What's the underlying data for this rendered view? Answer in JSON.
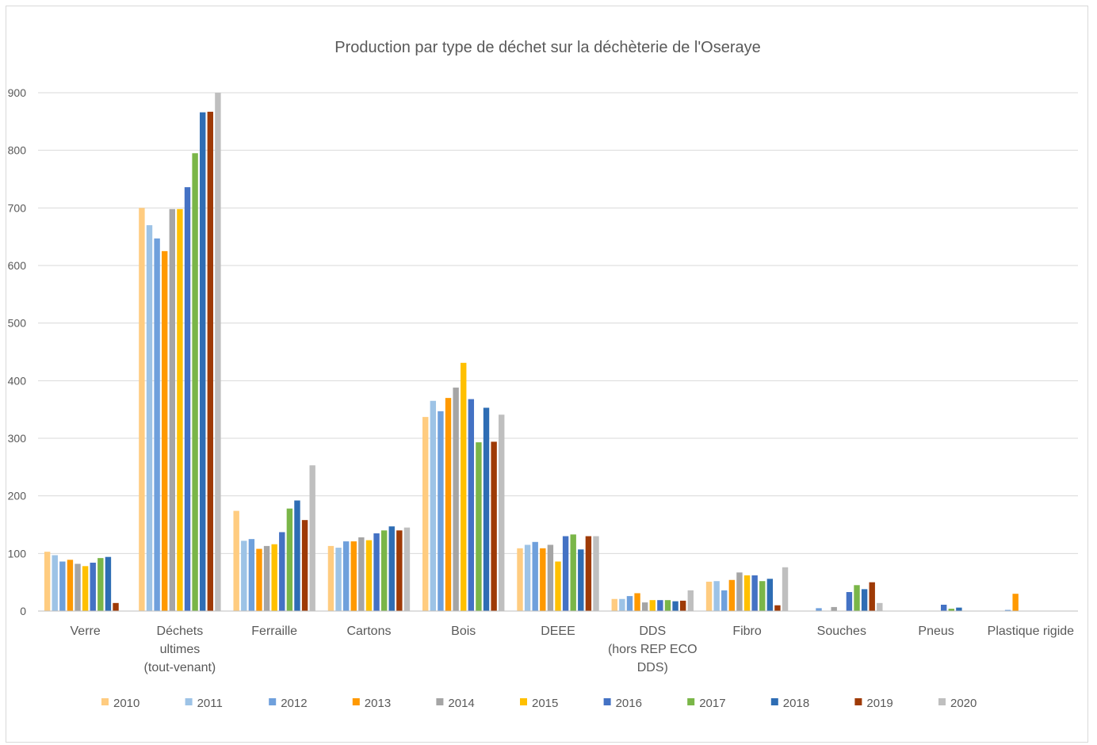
{
  "chart_data": {
    "type": "bar",
    "title": "Production par type de déchet sur la  déchèterie de l'Oseraye",
    "xlabel": "",
    "ylabel": "",
    "ylim": [
      0,
      900
    ],
    "yticks": [
      0,
      100,
      200,
      300,
      400,
      500,
      600,
      700,
      800,
      900
    ],
    "grid": true,
    "legend_position": "bottom",
    "categories": [
      [
        "Verre"
      ],
      [
        "Déchets",
        "ultimes",
        "(tout-venant)"
      ],
      [
        "Ferraille"
      ],
      [
        "Cartons"
      ],
      [
        "Bois"
      ],
      [
        "DEEE"
      ],
      [
        "DDS",
        "(hors REP ECO",
        "DDS)"
      ],
      [
        "Fibro"
      ],
      [
        "Souches"
      ],
      [
        "Pneus"
      ],
      [
        "Plastique rigide"
      ]
    ],
    "series": [
      {
        "name": "2010",
        "color": "#FFCC80",
        "values": [
          103,
          700,
          174,
          113,
          337,
          109,
          21,
          51,
          0,
          0,
          0
        ]
      },
      {
        "name": "2011",
        "color": "#9DC3E6",
        "values": [
          97,
          670,
          122,
          110,
          365,
          115,
          21,
          52,
          0,
          0,
          0
        ]
      },
      {
        "name": "2012",
        "color": "#6FA0DC",
        "values": [
          86,
          647,
          125,
          121,
          347,
          120,
          26,
          36,
          5,
          0,
          2
        ]
      },
      {
        "name": "2013",
        "color": "#FF9900",
        "values": [
          89,
          625,
          108,
          121,
          370,
          109,
          31,
          54,
          0,
          0,
          30
        ]
      },
      {
        "name": "2014",
        "color": "#A5A5A5",
        "values": [
          82,
          698,
          113,
          128,
          388,
          115,
          15,
          67,
          7,
          0,
          0
        ]
      },
      {
        "name": "2015",
        "color": "#FFC000",
        "values": [
          78,
          698,
          116,
          123,
          431,
          86,
          19,
          62,
          0,
          0,
          0
        ]
      },
      {
        "name": "2016",
        "color": "#4472C4",
        "values": [
          84,
          736,
          137,
          135,
          368,
          130,
          19,
          62,
          33,
          11,
          0
        ]
      },
      {
        "name": "2017",
        "color": "#7AB648",
        "values": [
          92,
          795,
          178,
          140,
          293,
          133,
          19,
          52,
          45,
          4,
          0
        ]
      },
      {
        "name": "2018",
        "color": "#2E6DB4",
        "values": [
          94,
          866,
          192,
          147,
          353,
          107,
          17,
          56,
          38,
          6,
          0
        ]
      },
      {
        "name": "2019",
        "color": "#9E3A06",
        "values": [
          14,
          867,
          158,
          140,
          294,
          130,
          18,
          10,
          50,
          0,
          0
        ]
      },
      {
        "name": "2020",
        "color": "#BFBFBF",
        "values": [
          0,
          900,
          253,
          145,
          341,
          130,
          36,
          76,
          14,
          0,
          0
        ]
      }
    ]
  }
}
